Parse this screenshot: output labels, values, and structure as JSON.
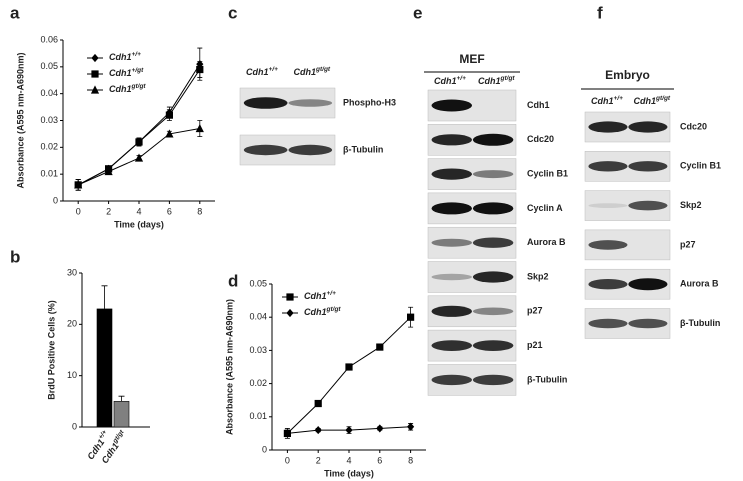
{
  "panel_labels": [
    "a",
    "b",
    "c",
    "d",
    "e",
    "f"
  ],
  "chart_data": [
    {
      "type": "line",
      "x_label": "Time (days)",
      "y_label": "Absorbance (A595 nm-A690nm)",
      "x": [
        0,
        2,
        4,
        6,
        8
      ],
      "xlim": [
        -1,
        9
      ],
      "xticks": [
        0,
        2,
        4,
        6,
        8
      ],
      "ylim": [
        0,
        0.06
      ],
      "yticks": [
        0,
        0.01,
        0.02,
        0.03,
        0.04,
        0.05,
        0.06
      ],
      "series": [
        {
          "name": "Cdh1+/+",
          "color": "#000000",
          "marker": "diamond",
          "values": [
            0.006,
            0.012,
            0.022,
            0.033,
            0.051
          ],
          "errors": [
            0.002,
            0.001,
            0.0015,
            0.002,
            0.006
          ]
        },
        {
          "name": "Cdh1+/gt",
          "color": "#000000",
          "marker": "square",
          "values": [
            0.006,
            0.012,
            0.022,
            0.032,
            0.049
          ],
          "errors": [
            0.002,
            0.001,
            0.0015,
            0.002,
            0.003
          ]
        },
        {
          "name": "Cdh1gt/gt",
          "color": "#000000",
          "marker": "triangle",
          "values": [
            0.006,
            0.011,
            0.016,
            0.025,
            0.027
          ],
          "errors": [
            0.002,
            0.001,
            0.001,
            0.001,
            0.003
          ]
        }
      ]
    },
    {
      "type": "bar",
      "y_label": "BrdU Positive Cells (%)",
      "categories": [
        "Cdh1+/+",
        "Cdh1gt/gt"
      ],
      "values": [
        23,
        5
      ],
      "errors": [
        4.5,
        1
      ],
      "colors": [
        "#000000",
        "#808080"
      ],
      "ylim": [
        0,
        30
      ],
      "yticks": [
        0,
        10,
        20,
        30
      ]
    },
    {
      "type": "line",
      "x_label": "Time (days)",
      "y_label": "Absorbance (A595 nm-A690nm)",
      "x": [
        0,
        2,
        4,
        6,
        8
      ],
      "xlim": [
        -1,
        9
      ],
      "xticks": [
        0,
        2,
        4,
        6,
        8
      ],
      "ylim": [
        0,
        0.05
      ],
      "yticks": [
        0,
        0.01,
        0.02,
        0.03,
        0.04,
        0.05
      ],
      "series": [
        {
          "name": "Cdh1+/+",
          "color": "#000000",
          "marker": "square",
          "values": [
            0.005,
            0.014,
            0.025,
            0.031,
            0.04
          ],
          "errors": [
            0.0015,
            0.0005,
            0.0005,
            0.0008,
            0.003
          ]
        },
        {
          "name": "Cdh1gt/gt",
          "color": "#000000",
          "marker": "diamond",
          "values": [
            0.005,
            0.006,
            0.006,
            0.0065,
            0.007
          ],
          "errors": [
            0.001,
            0.0005,
            0.001,
            0.0005,
            0.001
          ]
        }
      ]
    }
  ],
  "blots": [
    {
      "headers": [
        "Cdh1+/+",
        "Cdh1gt/gt"
      ],
      "rows": [
        "Phospho-H3",
        "β-Tubulin"
      ]
    },
    {
      "title": "MEF",
      "headers": [
        "Cdh1+/+",
        "Cdh1gt/gt"
      ],
      "rows": [
        "Cdh1",
        "Cdc20",
        "Cyclin B1",
        "Cyclin A",
        "Aurora B",
        "Skp2",
        "p27",
        "p21",
        "β-Tubulin"
      ]
    },
    {
      "title": "Embryo",
      "headers": [
        "Cdh1+/+",
        "Cdh1gt/gt"
      ],
      "rows": [
        "Cdc20",
        "Cyclin B1",
        "Skp2",
        "p27",
        "Aurora B",
        "β-Tubulin"
      ]
    }
  ]
}
